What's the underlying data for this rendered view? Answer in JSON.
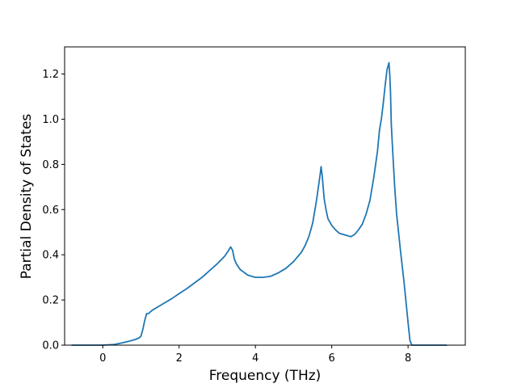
{
  "chart_data": {
    "type": "line",
    "title": "",
    "xlabel": "Frequency (THz)",
    "ylabel": "Partial Density of States",
    "xlim": [
      -1.0,
      9.5
    ],
    "ylim": [
      0.0,
      1.32
    ],
    "xticks": [
      0,
      2,
      4,
      6,
      8
    ],
    "yticks": [
      0.0,
      0.2,
      0.4,
      0.6,
      0.8,
      1.0,
      1.2
    ],
    "xtick_labels": [
      "0",
      "2",
      "4",
      "6",
      "8"
    ],
    "ytick_labels": [
      "0.0",
      "0.2",
      "0.4",
      "0.6",
      "0.8",
      "1.0",
      "1.2"
    ],
    "grid": false,
    "legend": null,
    "line_color": "#1f77b4",
    "series": [
      {
        "x": [
          -0.8,
          0.0,
          0.3,
          0.5,
          0.7,
          0.85,
          0.95,
          1.0,
          1.05,
          1.1,
          1.15,
          1.2,
          1.25,
          1.3,
          1.4,
          1.6,
          1.8,
          2.0,
          2.2,
          2.4,
          2.6,
          2.8,
          3.0,
          3.2,
          3.3,
          3.35,
          3.4,
          3.45,
          3.5,
          3.6,
          3.8,
          4.0,
          4.2,
          4.4,
          4.6,
          4.8,
          5.0,
          5.2,
          5.3,
          5.4,
          5.5,
          5.55,
          5.6,
          5.65,
          5.7,
          5.72,
          5.75,
          5.8,
          5.85,
          5.9,
          6.0,
          6.1,
          6.2,
          6.3,
          6.4,
          6.5,
          6.6,
          6.7,
          6.8,
          6.9,
          7.0,
          7.1,
          7.2,
          7.25,
          7.3,
          7.35,
          7.4,
          7.45,
          7.5,
          7.52,
          7.54,
          7.56,
          7.6,
          7.65,
          7.7,
          7.8,
          7.9,
          8.0,
          8.05,
          8.1,
          8.15,
          8.2,
          8.3,
          8.5,
          9.0
        ],
        "y": [
          0.0,
          0.0,
          0.003,
          0.01,
          0.018,
          0.025,
          0.032,
          0.04,
          0.07,
          0.11,
          0.14,
          0.14,
          0.148,
          0.155,
          0.165,
          0.185,
          0.205,
          0.228,
          0.25,
          0.275,
          0.3,
          0.33,
          0.36,
          0.395,
          0.42,
          0.435,
          0.42,
          0.38,
          0.36,
          0.335,
          0.31,
          0.3,
          0.3,
          0.305,
          0.32,
          0.34,
          0.37,
          0.41,
          0.44,
          0.48,
          0.54,
          0.59,
          0.64,
          0.7,
          0.76,
          0.79,
          0.75,
          0.65,
          0.6,
          0.56,
          0.53,
          0.51,
          0.495,
          0.49,
          0.485,
          0.48,
          0.49,
          0.51,
          0.535,
          0.58,
          0.64,
          0.74,
          0.86,
          0.95,
          1.0,
          1.07,
          1.15,
          1.22,
          1.25,
          1.2,
          1.12,
          0.98,
          0.85,
          0.7,
          0.58,
          0.42,
          0.27,
          0.1,
          0.02,
          0.0,
          0.0,
          0.0,
          0.0,
          0.0,
          0.0
        ]
      }
    ]
  }
}
